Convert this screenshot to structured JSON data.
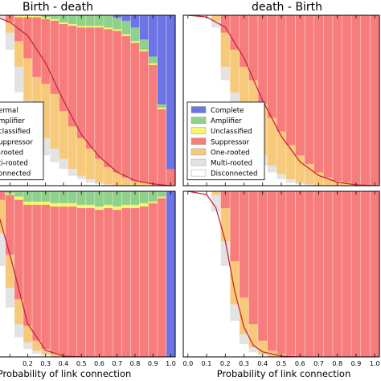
{
  "colors": {
    "Complete": "#6c74e6",
    "Amplifier": "#8fd18a",
    "Unclassified": "#f7f46f",
    "Suppressor": "#f77d7d",
    "One-rooted": "#f7c97a",
    "Multi-rooted": "#e3e3e3",
    "Disconnected": "#ffffff",
    "Curve": "#c8253a"
  },
  "chart_data": [
    {
      "type": "area",
      "panel": "top-left",
      "title": "Birth - death",
      "xlabel": "",
      "ylim": [
        0,
        1
      ],
      "legend": {
        "placement": "left",
        "entries": [
          "ermal",
          "mplifier",
          "classified",
          "uppressor",
          "-rooted",
          "ti-rooted",
          "onnected"
        ]
      },
      "x": [
        0.05,
        0.1,
        0.15,
        0.2,
        0.25,
        0.3,
        0.35,
        0.4,
        0.45,
        0.5,
        0.55,
        0.6,
        0.65,
        0.7,
        0.75,
        0.8,
        0.85,
        0.9,
        0.95,
        1.0
      ],
      "series": [
        {
          "name": "Disconnected",
          "values": [
            0.98,
            0.8,
            0.55,
            0.3,
            0.2,
            0.18,
            0.14,
            0.1,
            0.06,
            0.04,
            0.02,
            0.01,
            0,
            0,
            0,
            0,
            0,
            0,
            0,
            0
          ]
        },
        {
          "name": "Multi-rooted",
          "values": [
            0.02,
            0.1,
            0.15,
            0.2,
            0.14,
            0.1,
            0.08,
            0.06,
            0.04,
            0.02,
            0.02,
            0.01,
            0.01,
            0,
            0,
            0,
            0,
            0,
            0,
            0
          ]
        },
        {
          "name": "One-rooted",
          "values": [
            0,
            0.06,
            0.15,
            0.25,
            0.3,
            0.32,
            0.32,
            0.28,
            0.25,
            0.22,
            0.18,
            0.14,
            0.1,
            0.08,
            0.05,
            0.03,
            0.02,
            0.01,
            0,
            0
          ]
        },
        {
          "name": "Suppressor",
          "values": [
            0,
            0.04,
            0.14,
            0.24,
            0.35,
            0.38,
            0.43,
            0.51,
            0.59,
            0.65,
            0.71,
            0.77,
            0.81,
            0.83,
            0.83,
            0.81,
            0.77,
            0.7,
            0.45,
            0.1
          ]
        },
        {
          "name": "Unclassified",
          "values": [
            0,
            0,
            0.01,
            0.01,
            0.01,
            0.01,
            0.01,
            0.01,
            0.01,
            0.01,
            0.01,
            0.01,
            0.01,
            0.01,
            0.01,
            0.01,
            0.01,
            0.01,
            0.01,
            0
          ]
        },
        {
          "name": "Amplifier",
          "values": [
            0,
            0,
            0,
            0,
            0,
            0.01,
            0.02,
            0.04,
            0.05,
            0.06,
            0.06,
            0.06,
            0.07,
            0.07,
            0.08,
            0.08,
            0.06,
            0.04,
            0.02,
            0
          ]
        },
        {
          "name": "Complete",
          "values": [
            0,
            0,
            0,
            0,
            0,
            0,
            0,
            0,
            0,
            0,
            0,
            0,
            0,
            0.01,
            0.03,
            0.07,
            0.14,
            0.24,
            0.52,
            0.9
          ]
        }
      ],
      "curve_x": [
        0.0,
        0.1,
        0.2,
        0.3,
        0.4,
        0.5,
        0.6,
        0.7,
        0.8,
        0.9,
        1.0
      ],
      "curve_y": [
        1.0,
        0.96,
        0.88,
        0.72,
        0.5,
        0.3,
        0.17,
        0.08,
        0.03,
        0.01,
        0.0
      ]
    },
    {
      "type": "area",
      "panel": "top-right",
      "title": "death - Birth",
      "xlabel": "",
      "ylim": [
        0,
        1
      ],
      "legend": {
        "placement": "left",
        "entries": [
          "Complete",
          "Amplifier",
          "Unclassified",
          "Suppressor",
          "One-rooted",
          "Multi-rooted",
          "Disconnected"
        ]
      },
      "x": [
        0.05,
        0.1,
        0.15,
        0.2,
        0.25,
        0.3,
        0.35,
        0.4,
        0.45,
        0.5,
        0.55,
        0.6,
        0.65,
        0.7,
        0.75,
        0.8,
        0.85,
        0.9,
        0.95,
        1.0
      ],
      "series": [
        {
          "name": "Disconnected",
          "values": [
            1.0,
            1.0,
            0.93,
            0.62,
            0.45,
            0.32,
            0.24,
            0.12,
            0.08,
            0.04,
            0.02,
            0.01,
            0,
            0,
            0,
            0,
            0,
            0,
            0,
            0
          ]
        },
        {
          "name": "Multi-rooted",
          "values": [
            0,
            0,
            0.04,
            0.08,
            0.1,
            0.1,
            0.08,
            0.06,
            0.04,
            0.03,
            0.02,
            0.01,
            0.01,
            0,
            0,
            0,
            0,
            0,
            0,
            0
          ]
        },
        {
          "name": "One-rooted",
          "values": [
            0,
            0,
            0.03,
            0.2,
            0.25,
            0.28,
            0.3,
            0.3,
            0.28,
            0.25,
            0.2,
            0.16,
            0.12,
            0.08,
            0.05,
            0.03,
            0.02,
            0.01,
            0,
            0
          ]
        },
        {
          "name": "Suppressor",
          "values": [
            0,
            0,
            0,
            0.1,
            0.2,
            0.3,
            0.38,
            0.52,
            0.6,
            0.68,
            0.76,
            0.82,
            0.87,
            0.92,
            0.95,
            0.97,
            0.98,
            0.99,
            1.0,
            1.0
          ]
        },
        {
          "name": "Unclassified",
          "values": [
            0,
            0,
            0,
            0,
            0,
            0,
            0,
            0,
            0,
            0,
            0,
            0,
            0,
            0,
            0,
            0,
            0,
            0,
            0,
            0
          ]
        },
        {
          "name": "Amplifier",
          "values": [
            0,
            0,
            0,
            0,
            0,
            0,
            0,
            0,
            0,
            0,
            0,
            0,
            0,
            0,
            0,
            0,
            0,
            0,
            0,
            0
          ]
        },
        {
          "name": "Complete",
          "values": [
            0,
            0,
            0,
            0,
            0,
            0,
            0,
            0,
            0,
            0,
            0,
            0,
            0,
            0,
            0,
            0,
            0,
            0,
            0,
            0
          ]
        }
      ],
      "curve_x": [
        0.0,
        0.1,
        0.2,
        0.3,
        0.4,
        0.5,
        0.6,
        0.7,
        0.8,
        0.9,
        1.0
      ],
      "curve_y": [
        1.0,
        0.99,
        0.93,
        0.75,
        0.5,
        0.29,
        0.14,
        0.06,
        0.02,
        0.005,
        0.0
      ]
    },
    {
      "type": "area",
      "panel": "bottom-left",
      "title": "",
      "xlabel": "Probability of link connection",
      "xticklabels": [
        "0.2",
        "0.3",
        "0.4",
        "0.5",
        "0.6",
        "0.7",
        "0.8",
        "0.9",
        "1.0"
      ],
      "ylim": [
        0,
        1
      ],
      "x": [
        0.05,
        0.1,
        0.15,
        0.2,
        0.25,
        0.3,
        0.35,
        0.4,
        0.45,
        0.5,
        0.55,
        0.6,
        0.65,
        0.7,
        0.75,
        0.8,
        0.85,
        0.9,
        0.95,
        1.0
      ],
      "series": [
        {
          "name": "Disconnected",
          "values": [
            0.55,
            0.3,
            0.12,
            0.05,
            0.02,
            0.01,
            0,
            0,
            0,
            0,
            0,
            0,
            0,
            0,
            0,
            0,
            0,
            0,
            0,
            0
          ]
        },
        {
          "name": "Multi-rooted",
          "values": [
            0.2,
            0.12,
            0.08,
            0.04,
            0.02,
            0.01,
            0,
            0,
            0,
            0,
            0,
            0,
            0,
            0,
            0,
            0,
            0,
            0,
            0,
            0
          ]
        },
        {
          "name": "One-rooted",
          "values": [
            0.2,
            0.2,
            0.15,
            0.1,
            0.06,
            0.03,
            0.02,
            0.01,
            0,
            0,
            0,
            0,
            0,
            0,
            0,
            0,
            0,
            0,
            0,
            0
          ]
        },
        {
          "name": "Suppressor",
          "values": [
            0.05,
            0.36,
            0.6,
            0.73,
            0.82,
            0.87,
            0.89,
            0.9,
            0.91,
            0.9,
            0.9,
            0.89,
            0.9,
            0.89,
            0.9,
            0.9,
            0.91,
            0.93,
            0.96,
            0
          ]
        },
        {
          "name": "Unclassified",
          "values": [
            0,
            0.01,
            0.02,
            0.02,
            0.02,
            0.02,
            0.02,
            0.02,
            0.02,
            0.02,
            0.02,
            0.02,
            0.02,
            0.02,
            0.02,
            0.02,
            0.02,
            0.01,
            0.01,
            0
          ]
        },
        {
          "name": "Amplifier",
          "values": [
            0,
            0.01,
            0.03,
            0.06,
            0.06,
            0.06,
            0.07,
            0.07,
            0.07,
            0.08,
            0.08,
            0.09,
            0.08,
            0.09,
            0.08,
            0.08,
            0.07,
            0.06,
            0.03,
            0
          ]
        },
        {
          "name": "Complete",
          "values": [
            0,
            0,
            0,
            0,
            0,
            0,
            0,
            0,
            0,
            0,
            0,
            0,
            0,
            0,
            0,
            0,
            0,
            0,
            0,
            1.0
          ]
        }
      ],
      "curve_x": [
        0.0,
        0.1,
        0.2,
        0.3,
        0.4,
        0.5,
        0.6,
        0.7,
        0.8,
        0.9,
        1.0
      ],
      "curve_y": [
        1.0,
        0.62,
        0.2,
        0.04,
        0.005,
        0.0,
        0.0,
        0.0,
        0.0,
        0.0,
        0.0
      ]
    },
    {
      "type": "area",
      "panel": "bottom-right",
      "title": "",
      "xlabel": "Probability of link connection",
      "xticklabels": [
        "0.0",
        "0.1",
        "0.2",
        "0.3",
        "0.4",
        "0.5",
        "0.6",
        "0.7",
        "0.8",
        "0.9",
        "1.0"
      ],
      "ylim": [
        0,
        1
      ],
      "x": [
        0.05,
        0.1,
        0.15,
        0.2,
        0.25,
        0.3,
        0.35,
        0.4,
        0.45,
        0.5,
        0.55,
        0.6,
        0.65,
        0.7,
        0.75,
        0.8,
        0.85,
        0.9,
        0.95,
        1.0
      ],
      "series": [
        {
          "name": "Disconnected",
          "values": [
            1.0,
            1.0,
            0.88,
            0.55,
            0.22,
            0.08,
            0.03,
            0.01,
            0,
            0,
            0,
            0,
            0,
            0,
            0,
            0,
            0,
            0,
            0,
            0
          ]
        },
        {
          "name": "Multi-rooted",
          "values": [
            0,
            0,
            0.1,
            0.15,
            0.1,
            0.06,
            0.03,
            0.01,
            0,
            0,
            0,
            0,
            0,
            0,
            0,
            0,
            0,
            0,
            0,
            0
          ]
        },
        {
          "name": "One-rooted",
          "values": [
            0,
            0,
            0.02,
            0.2,
            0.26,
            0.22,
            0.14,
            0.08,
            0.04,
            0.02,
            0.01,
            0,
            0,
            0,
            0,
            0,
            0,
            0,
            0,
            0
          ]
        },
        {
          "name": "Suppressor",
          "values": [
            0,
            0,
            0,
            0.1,
            0.42,
            0.64,
            0.8,
            0.9,
            0.96,
            0.98,
            0.99,
            1.0,
            1.0,
            1.0,
            1.0,
            1.0,
            1.0,
            1.0,
            1.0,
            1.0
          ]
        },
        {
          "name": "Unclassified",
          "values": [
            0,
            0,
            0,
            0,
            0,
            0,
            0,
            0,
            0,
            0,
            0,
            0,
            0,
            0,
            0,
            0,
            0,
            0,
            0,
            0
          ]
        },
        {
          "name": "Amplifier",
          "values": [
            0,
            0,
            0,
            0,
            0,
            0,
            0,
            0,
            0,
            0,
            0,
            0,
            0,
            0,
            0,
            0,
            0,
            0,
            0,
            0
          ]
        },
        {
          "name": "Complete",
          "values": [
            0,
            0,
            0,
            0,
            0,
            0,
            0,
            0,
            0,
            0,
            0,
            0,
            0,
            0,
            0,
            0,
            0,
            0,
            0,
            0
          ]
        }
      ],
      "curve_x": [
        0.0,
        0.1,
        0.15,
        0.2,
        0.25,
        0.3,
        0.35,
        0.4,
        0.5,
        0.6,
        0.8,
        1.0
      ],
      "curve_y": [
        1.0,
        0.98,
        0.9,
        0.7,
        0.4,
        0.18,
        0.07,
        0.03,
        0.005,
        0.0,
        0.0,
        0.0
      ]
    }
  ]
}
